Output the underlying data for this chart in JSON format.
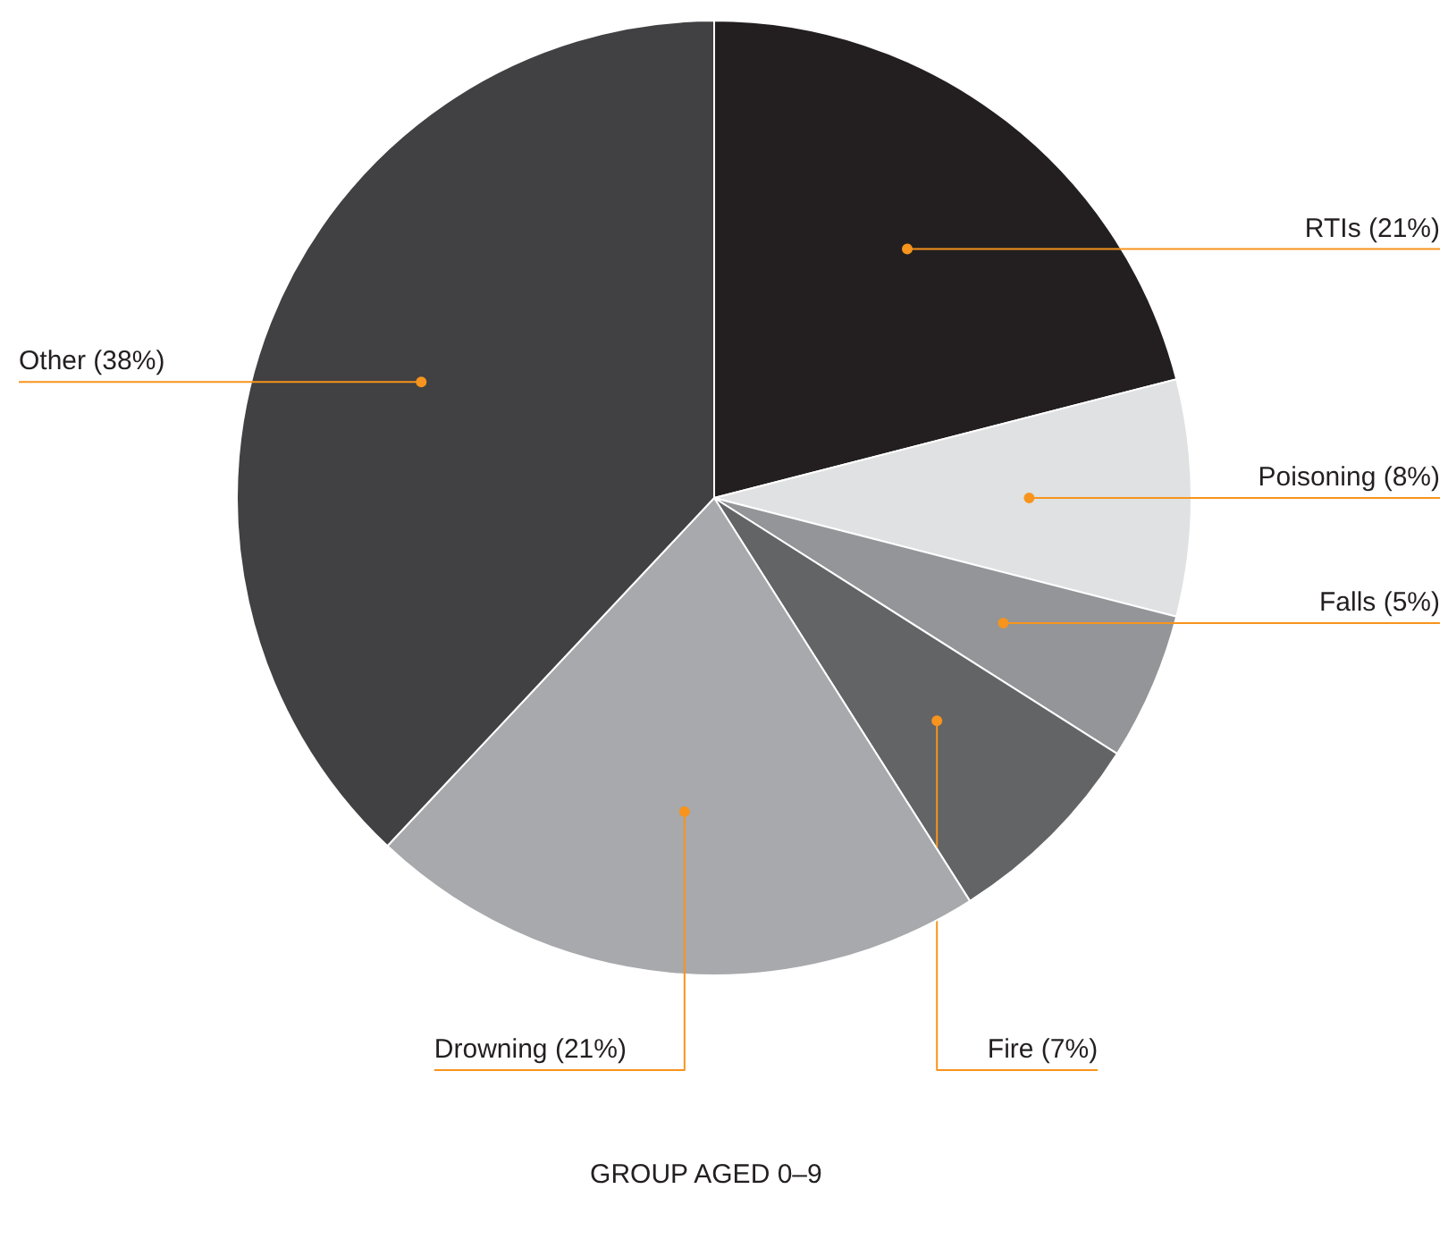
{
  "chart_data": {
    "type": "pie",
    "title": "GROUP AGED 0–9",
    "categories": [
      "RTIs",
      "Poisoning",
      "Falls",
      "Fire",
      "Drowning",
      "Other"
    ],
    "values": [
      21,
      8,
      5,
      7,
      21,
      38
    ],
    "value_labels": [
      "(21%)",
      "(8%)",
      "(5%)",
      "(7%)",
      "(21%)",
      "(38%)"
    ],
    "colors": [
      "#231f20",
      "#e0e1e2",
      "#939598",
      "#636466",
      "#a7a9ac",
      "#414042"
    ]
  }
}
